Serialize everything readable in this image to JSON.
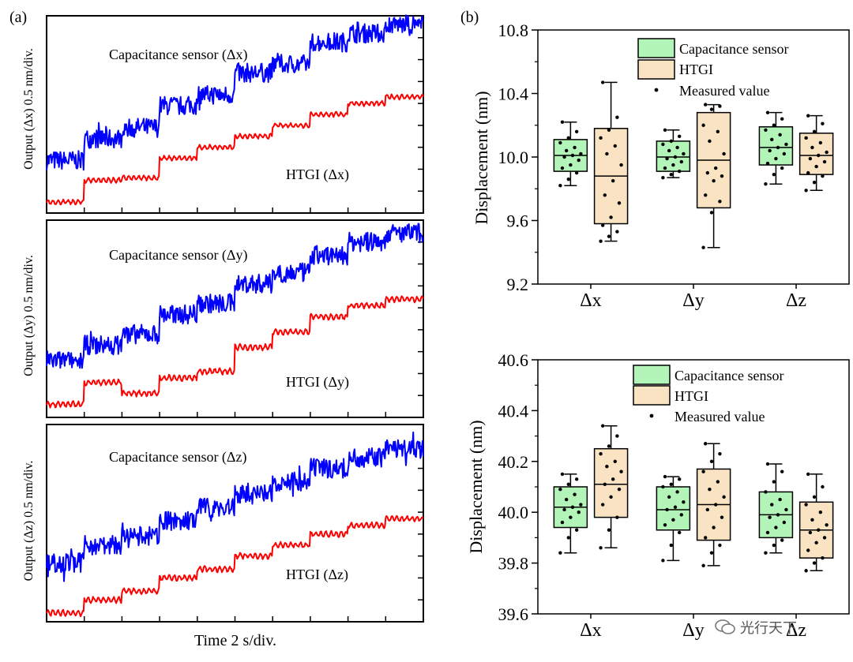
{
  "panel_labels": {
    "a": "(a)",
    "b": "(b)"
  },
  "panel_a": {
    "xlabel": "Time 2 s/div.",
    "subplots": [
      {
        "ylabel": "Output (Δx) 0.5 nm/div.",
        "sensor_label": "Capacitance sensor (Δx)",
        "htgi_label": "HTGI (Δx)"
      },
      {
        "ylabel": "Output (Δy) 0.5 nm/div.",
        "sensor_label": "Capacitance sensor (Δy)",
        "htgi_label": "HTGI (Δy)"
      },
      {
        "ylabel": "Output (Δz) 0.5 nm/div.",
        "sensor_label": "Capacitance sensor (Δz)",
        "htgi_label": "HTGI (Δz)"
      }
    ]
  },
  "legend": {
    "capacitance": "Capacitance sensor",
    "htgi": "HTGI",
    "measured": "Measured value"
  },
  "colors": {
    "blue": "#0000ff",
    "red": "#ff0000",
    "green_fill": "#b3f5b8",
    "tan_fill": "#f9e3c2",
    "axis": "#000000"
  },
  "watermark": {
    "text": "光行天下"
  },
  "chart_data": [
    {
      "type": "line",
      "panel": "a1",
      "title": "Capacitance sensor (Δx) / HTGI (Δx)",
      "xlabel": "Time 2 s/div.",
      "ylabel": "Output (Δx) 0.5 nm/div.",
      "x": [
        0,
        2,
        4,
        6,
        8,
        10,
        12,
        14,
        16,
        18
      ],
      "series": [
        {
          "name": "Capacitance sensor",
          "color": "#0000ff",
          "values": [
            0.2,
            0.7,
            0.95,
            1.45,
            1.7,
            2.2,
            2.4,
            2.9,
            3.1,
            3.3
          ]
        },
        {
          "name": "HTGI",
          "color": "#ff0000",
          "values": [
            -0.75,
            -0.25,
            -0.2,
            0.25,
            0.5,
            0.75,
            1.0,
            1.25,
            1.5,
            1.65
          ]
        }
      ],
      "ylim": [
        -1,
        3.5
      ],
      "y_steps": 9,
      "noise": {
        "blue": 0.22,
        "red": 0.05
      }
    },
    {
      "type": "line",
      "panel": "a2",
      "title": "Capacitance sensor (Δy) / HTGI (Δy)",
      "xlabel": "Time 2 s/div.",
      "ylabel": "Output (Δy) 0.5 nm/div.",
      "x": [
        0,
        2,
        4,
        6,
        8,
        10,
        12,
        14,
        16,
        18
      ],
      "series": [
        {
          "name": "Capacitance sensor",
          "color": "#0000ff",
          "values": [
            0.3,
            0.65,
            0.9,
            1.35,
            1.6,
            2.05,
            2.3,
            2.7,
            3.0,
            3.2
          ]
        },
        {
          "name": "HTGI",
          "color": "#ff0000",
          "values": [
            -0.7,
            -0.2,
            -0.45,
            -0.1,
            0.05,
            0.6,
            0.95,
            1.3,
            1.55,
            1.7
          ]
        }
      ],
      "ylim": [
        -1,
        3.5
      ],
      "y_steps": 9,
      "noise": {
        "blue": 0.22,
        "red": 0.06
      }
    },
    {
      "type": "line",
      "panel": "a3",
      "title": "Capacitance sensor (Δz) / HTGI (Δz)",
      "xlabel": "Time 2 s/div.",
      "ylabel": "Output (Δz) 0.5 nm/div.",
      "x": [
        0,
        2,
        4,
        6,
        8,
        10,
        12,
        14,
        16,
        18
      ],
      "series": [
        {
          "name": "Capacitance sensor",
          "color": "#0000ff",
          "values": [
            0.35,
            0.75,
            0.95,
            1.3,
            1.6,
            1.9,
            2.2,
            2.5,
            2.75,
            2.95
          ]
        },
        {
          "name": "HTGI",
          "color": "#ff0000",
          "values": [
            -0.8,
            -0.5,
            -0.3,
            0.0,
            0.2,
            0.5,
            0.75,
            1.0,
            1.2,
            1.35
          ]
        }
      ],
      "ylim": [
        -1,
        3.5
      ],
      "y_steps": 9,
      "noise": {
        "blue": 0.22,
        "red": 0.06
      }
    },
    {
      "type": "box",
      "panel": "b1",
      "ylabel": "Displacement (nm)",
      "categories": [
        "Δx",
        "Δy",
        "Δz"
      ],
      "ylim": [
        9.2,
        10.8
      ],
      "yticks": [
        "9.2",
        "9.6",
        "10.0",
        "10.4",
        "10.8"
      ],
      "series": [
        {
          "name": "Capacitance sensor",
          "boxes": [
            {
              "min": 9.82,
              "q1": 9.91,
              "median": 10.01,
              "q3": 10.11,
              "max": 10.22,
              "points": [
                9.82,
                9.86,
                9.9,
                9.93,
                9.95,
                9.98,
                10.0,
                10.01,
                10.02,
                10.04,
                10.06,
                10.09,
                10.12,
                10.16,
                10.22
              ]
            },
            {
              "min": 9.87,
              "q1": 9.91,
              "median": 10.0,
              "q3": 10.1,
              "max": 10.17,
              "points": [
                9.87,
                9.89,
                9.91,
                9.93,
                9.95,
                9.97,
                9.99,
                10.0,
                10.02,
                10.04,
                10.06,
                10.08,
                10.1,
                10.13,
                10.17
              ]
            },
            {
              "min": 9.83,
              "q1": 9.95,
              "median": 10.06,
              "q3": 10.19,
              "max": 10.28,
              "points": [
                9.83,
                9.89,
                9.93,
                9.96,
                9.99,
                10.02,
                10.04,
                10.06,
                10.08,
                10.11,
                10.14,
                10.17,
                10.2,
                10.24,
                10.28
              ]
            }
          ]
        },
        {
          "name": "HTGI",
          "boxes": [
            {
              "min": 9.47,
              "q1": 9.58,
              "median": 9.88,
              "q3": 10.18,
              "max": 10.47,
              "points": [
                9.47,
                9.5,
                9.53,
                9.57,
                9.62,
                9.71,
                9.76,
                9.85,
                9.95,
                10.02,
                10.07,
                10.12,
                10.17,
                10.25,
                10.47
              ]
            },
            {
              "min": 9.43,
              "q1": 9.68,
              "median": 9.98,
              "q3": 10.28,
              "max": 10.33,
              "points": [
                9.43,
                9.65,
                9.72,
                9.76,
                9.85,
                9.88,
                9.9,
                9.93,
                10.02,
                10.1,
                10.16,
                10.2,
                10.3,
                10.32,
                10.33
              ]
            },
            {
              "min": 9.79,
              "q1": 9.89,
              "median": 10.01,
              "q3": 10.15,
              "max": 10.26,
              "points": [
                9.79,
                9.84,
                9.88,
                9.9,
                9.94,
                9.97,
                9.99,
                10.01,
                10.03,
                10.06,
                10.09,
                10.12,
                10.16,
                10.21,
                10.26
              ]
            }
          ]
        }
      ]
    },
    {
      "type": "box",
      "panel": "b2",
      "ylabel": "Displacement (nm)",
      "categories": [
        "Δx",
        "Δy",
        "Δz"
      ],
      "ylim": [
        39.6,
        40.6
      ],
      "yticks": [
        "39.6",
        "39.8",
        "40.0",
        "40.2",
        "40.4",
        "40.6"
      ],
      "series": [
        {
          "name": "Capacitance sensor",
          "boxes": [
            {
              "min": 39.84,
              "q1": 39.94,
              "median": 40.02,
              "q3": 40.1,
              "max": 40.15,
              "points": [
                39.84,
                39.9,
                39.93,
                39.96,
                39.98,
                40.0,
                40.01,
                40.02,
                40.03,
                40.05,
                40.07,
                40.09,
                40.11,
                40.13,
                40.15
              ]
            },
            {
              "min": 39.81,
              "q1": 39.93,
              "median": 40.01,
              "q3": 40.1,
              "max": 40.14,
              "points": [
                39.81,
                39.87,
                39.92,
                39.95,
                39.97,
                39.99,
                40.01,
                40.02,
                40.04,
                40.06,
                40.08,
                40.1,
                40.11,
                40.13,
                40.14
              ]
            },
            {
              "min": 39.84,
              "q1": 39.9,
              "median": 39.99,
              "q3": 40.08,
              "max": 40.19,
              "points": [
                39.84,
                39.87,
                39.89,
                39.92,
                39.94,
                39.96,
                39.98,
                39.99,
                40.01,
                40.03,
                40.05,
                40.08,
                40.12,
                40.16,
                40.19
              ]
            }
          ]
        },
        {
          "name": "HTGI",
          "boxes": [
            {
              "min": 39.86,
              "q1": 39.98,
              "median": 40.11,
              "q3": 40.25,
              "max": 40.34,
              "points": [
                39.86,
                39.93,
                39.98,
                40.03,
                40.06,
                40.09,
                40.11,
                40.13,
                40.16,
                40.18,
                40.2,
                40.23,
                40.26,
                40.3,
                40.34
              ]
            },
            {
              "min": 39.79,
              "q1": 39.89,
              "median": 40.03,
              "q3": 40.17,
              "max": 40.27,
              "points": [
                39.79,
                39.84,
                39.87,
                39.9,
                39.94,
                39.98,
                40.01,
                40.03,
                40.06,
                40.09,
                40.12,
                40.16,
                40.2,
                40.23,
                40.27
              ]
            },
            {
              "min": 39.77,
              "q1": 39.82,
              "median": 39.93,
              "q3": 40.04,
              "max": 40.15,
              "points": [
                39.77,
                39.8,
                39.82,
                39.85,
                39.88,
                39.9,
                39.92,
                39.93,
                39.95,
                39.97,
                40.0,
                40.03,
                40.06,
                40.1,
                40.15
              ]
            }
          ]
        }
      ]
    }
  ]
}
